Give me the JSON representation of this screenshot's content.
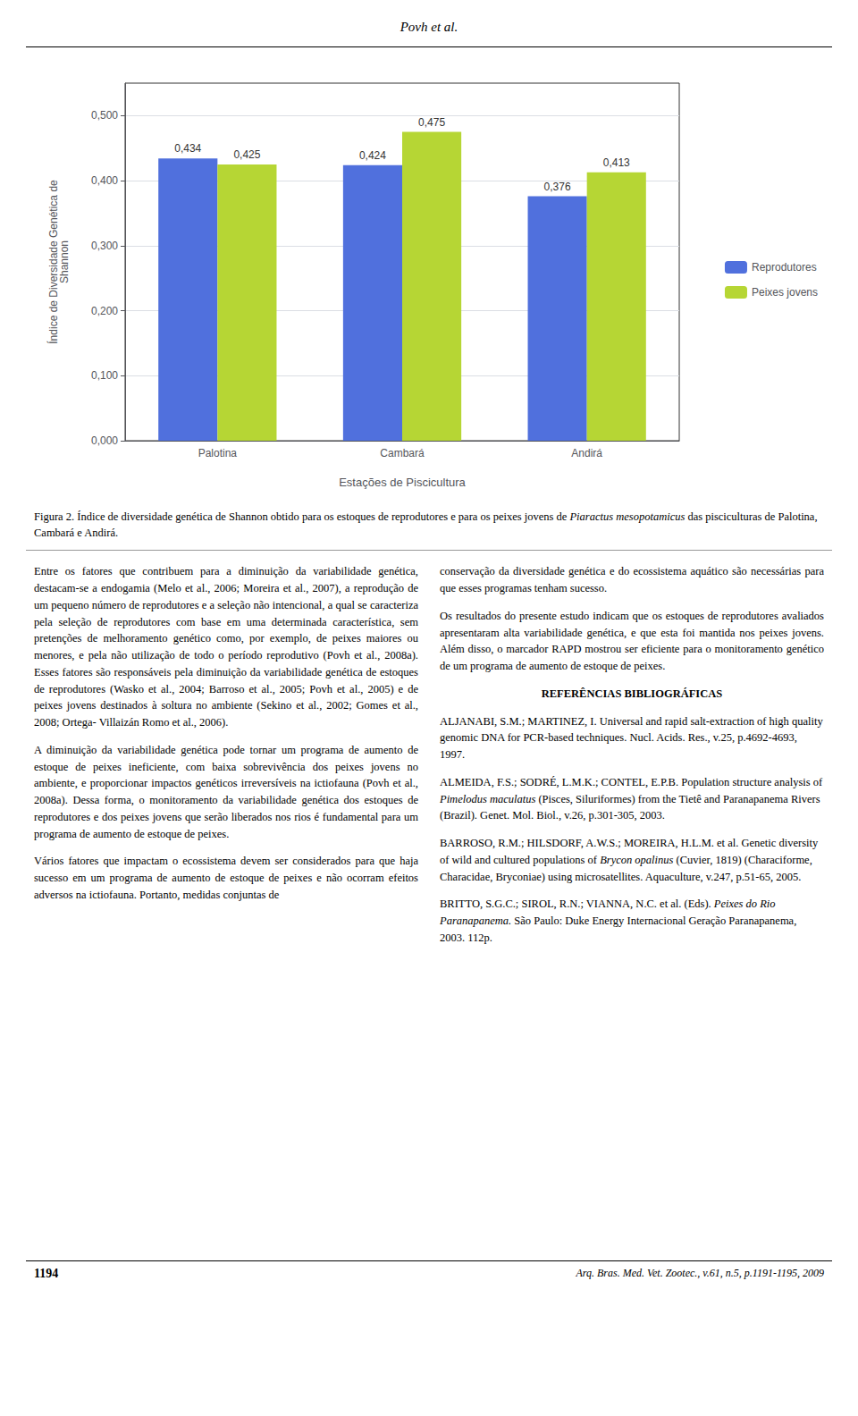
{
  "page_title": "Povh et al.",
  "chart_data": {
    "type": "bar",
    "categories": [
      "Palotina",
      "Cambará",
      "Andirá"
    ],
    "series": [
      {
        "name": "Reprodutores",
        "values": [
          0.434,
          0.424,
          0.376
        ],
        "value_labels": [
          "0,434",
          "0,424",
          "0,376"
        ]
      },
      {
        "name": "Peixes jovens",
        "values": [
          0.425,
          0.475,
          0.413
        ],
        "value_labels": [
          "0,425",
          "0,475",
          "0,413"
        ]
      }
    ],
    "x_label": "Estações de Piscicultura",
    "y_label": "Índice de Diversidade Genética de\nShannon",
    "ylim": [
      0,
      0.55
    ],
    "yticks": [
      {
        "value": 0,
        "label": "0,000"
      },
      {
        "value": 0.1,
        "label": "0,100"
      },
      {
        "value": 0.2,
        "label": "0,200"
      },
      {
        "value": 0.3,
        "label": "0,300"
      },
      {
        "value": 0.4,
        "label": "0,400"
      },
      {
        "value": 0.5,
        "label": "0,500"
      }
    ],
    "grid": true,
    "legend": "right",
    "data_labels": true
  },
  "figure_caption": {
    "before_italic": "Figura 2. Índice de diversidade genética de Shannon obtido para os estoques de reprodutores e para os peixes jovens de ",
    "italic": "Piaractus mesopotamicus",
    "after_italic": " das pisciculturas de Palotina, Cambará e Andirá."
  },
  "column1": [
    "Entre os fatores que contribuem para a diminuição da variabilidade genética, destacam-se a endogamia (Melo et al., 2006; Moreira et al., 2007), a reprodução de um pequeno número de reprodutores e a seleção não intencional, a qual se caracteriza pela seleção de reprodutores com base em uma determinada característica, sem pretenções de melhoramento genético como, por exemplo, de peixes maiores ou menores, e pela não utilização de todo o período reprodutivo (Povh et al., 2008a). Esses fatores são responsáveis pela diminuição da variabilidade genética de estoques de reprodutores (Wasko et al., 2004; Barroso et al., 2005; Povh et al., 2005) e de peixes jovens destinados à soltura no ambiente (Sekino et al., 2002; Gomes et al., 2008; Ortega- Villaizán Romo et al., 2006).",
    "A diminuição da variabilidade genética pode tornar um programa de aumento de estoque de peixes ineficiente, com baixa sobrevivência dos peixes jovens no ambiente, e proporcionar impactos genéticos irreversíveis na ictiofauna (Povh et al., 2008a). Dessa forma, o monitoramento da variabilidade genética dos estoques de reprodutores e dos peixes jovens que serão liberados nos rios é fundamental para um programa de aumento de estoque de peixes.",
    "Vários fatores que impactam o ecossistema devem ser considerados para que haja sucesso em um programa de aumento de estoque de peixes e não ocorram efeitos adversos na ictiofauna. Portanto, medidas conjuntas de"
  ],
  "column2": [
    "conservação da diversidade genética e do ecossistema aquático são necessárias para que esses programas tenham sucesso.",
    "Os resultados do presente estudo indicam que os estoques de reprodutores avaliados apresentaram alta variabilidade genética, e que esta foi mantida nos peixes jovens. Além disso, o marcador RAPD mostrou ser eficiente para o monitoramento genético de um programa de aumento de estoque de peixes."
  ],
  "references_title": "REFERÊNCIAS BIBLIOGRÁFICAS",
  "references": [
    {
      "before_italic": "ALJANABI, S.M.; MARTINEZ, I. Universal and rapid salt-extraction of high quality genomic DNA for PCR-based techniques. Nucl. Acids. Res., v.25, p.4692-4693, 1997."
    },
    {
      "before_italic": "ALMEIDA, F.S.; SODRÉ, L.M.K.; CONTEL, E.P.B. Population structure analysis of ",
      "italic": "Pimelodus maculatus",
      "after_italic": " (Pisces, Siluriformes) from the Tietê and Paranapanema Rivers (Brazil). Genet. Mol. Biol., v.26, p.301-305, 2003."
    },
    {
      "before_italic": "BARROSO, R.M.; HILSDORF, A.W.S.; MOREIRA, H.L.M. et al. Genetic diversity of wild and cultured populations of ",
      "italic": "Brycon opalinus",
      "after_italic": " (Cuvier, 1819) (Characiforme, Characidae, Bryconiae) using microsatellites. Aquaculture, v.247, p.51-65, 2005."
    },
    {
      "before_italic": "BRITTO, S.G.C.; SIROL, R.N.; VIANNA, N.C. et al. (Eds). ",
      "italic": "Peixes do Rio Paranapanema.",
      "after_italic": " São Paulo: Duke Energy Internacional Geração Paranapanema, 2003. 112p."
    }
  ],
  "footer_left": "1194",
  "footer_right": "Arq. Bras. Med. Vet. Zootec., v.61, n.5, p.1191-1195, 2009"
}
